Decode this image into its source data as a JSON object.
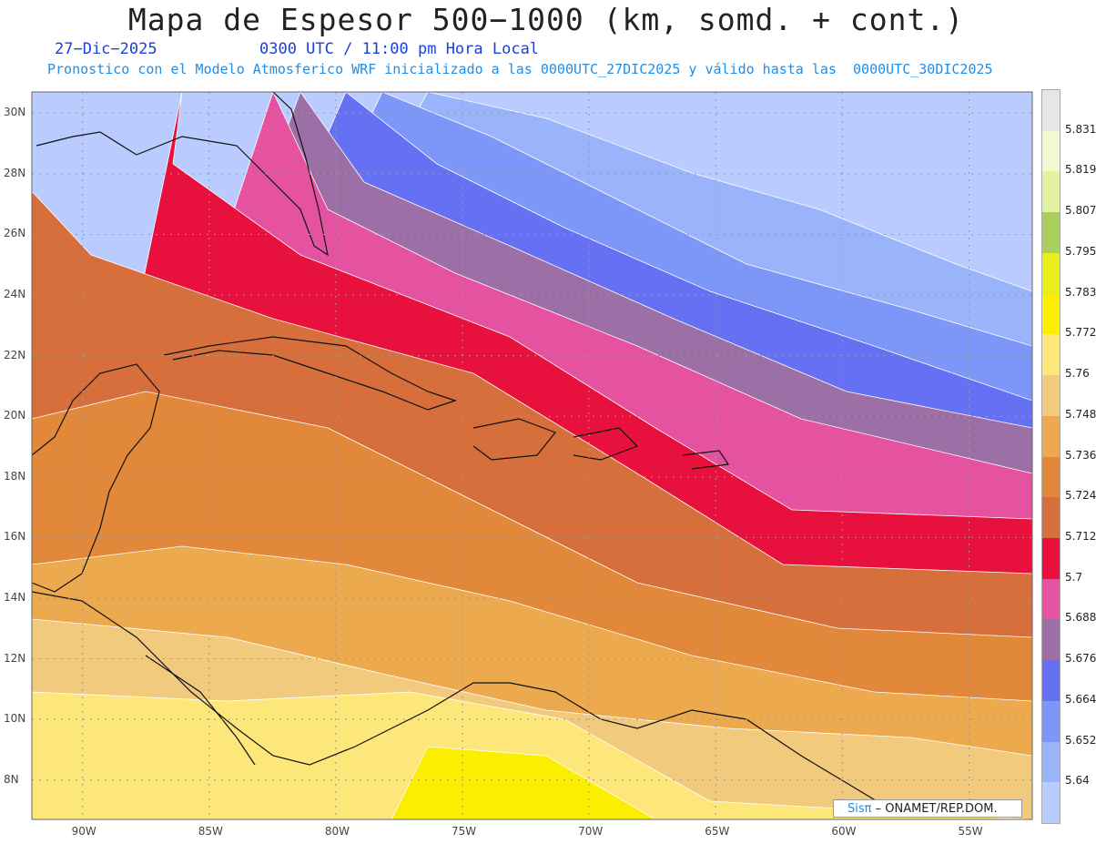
{
  "header": {
    "title": "Mapa de Espesor 500−1000 (km, somd. + cont.)",
    "date": "27−Dic−2025",
    "time": "0300 UTC / 11:00 pm Hora Local",
    "forecast": "Pronostico con el Modelo Atmosferico WRF inicializado a las 0000UTC_27DIC2025 y válido hasta las  0000UTC_30DIC2025"
  },
  "axes": {
    "lat_labels": [
      "30N",
      "28N",
      "26N",
      "24N",
      "22N",
      "20N",
      "18N",
      "16N",
      "14N",
      "12N",
      "10N",
      "8N"
    ],
    "lon_labels": [
      "90W",
      "85W",
      "80W",
      "75W",
      "70W",
      "65W",
      "60W",
      "55W"
    ]
  },
  "colorbar": {
    "labels": [
      "5.831",
      "5.819",
      "5.807",
      "5.795",
      "5.783",
      "5.772",
      "5.76",
      "5.748",
      "5.736",
      "5.724",
      "5.712",
      "5.7",
      "5.688",
      "5.676",
      "5.664",
      "5.652",
      "5.64"
    ],
    "colors": [
      "#e6e6e6",
      "#f3f7d2",
      "#e4f3a2",
      "#a9d05c",
      "#e8ee1a",
      "#fbee00",
      "#fde77b",
      "#f2ca7d",
      "#eda94d",
      "#e2883a",
      "#d66f3c",
      "#e8103c",
      "#e452a0",
      "#9c6fa6",
      "#6670f2",
      "#7d97f8",
      "#9ab4fc",
      "#bacbff"
    ]
  },
  "credit": {
    "sis": "Sisπ",
    "org": " – ONAMET/REP.DOM."
  },
  "chart_data": {
    "type": "heatmap",
    "title": "Mapa de Espesor 500−1000 (km, somd. + cont.)",
    "xlabel": "",
    "ylabel": "",
    "lon_range": [
      -92,
      -52.5
    ],
    "lat_range": [
      6.7,
      30.7
    ],
    "contour_levels": [
      5.64,
      5.652,
      5.664,
      5.676,
      5.688,
      5.7,
      5.712,
      5.724,
      5.736,
      5.748,
      5.76,
      5.772,
      5.783,
      5.795,
      5.807,
      5.819,
      5.831
    ],
    "field_range_shown": [
      5.63,
      5.79
    ]
  }
}
